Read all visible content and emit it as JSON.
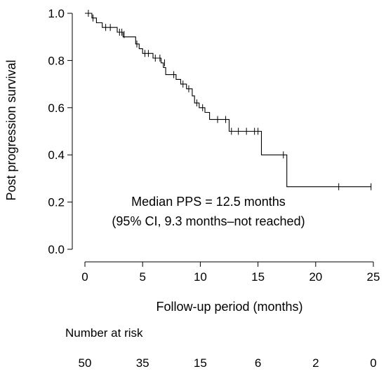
{
  "chart_data": {
    "type": "line",
    "subtype": "kaplan-meier",
    "ylabel": "Post progression survival",
    "xlabel": "Follow-up period (months)",
    "xlim": [
      0,
      25
    ],
    "ylim": [
      0.0,
      1.0
    ],
    "xticks": [
      "0",
      "5",
      "10",
      "15",
      "20",
      "25"
    ],
    "yticks": [
      "0.0",
      "0.2",
      "0.4",
      "0.6",
      "0.8",
      "1.0"
    ],
    "annotation": [
      "Median PPS = 12.5 months",
      "(95% CI, 9.3 months–not reached)"
    ],
    "steps": [
      {
        "x": 0.0,
        "y": 1.0
      },
      {
        "x": 0.6,
        "y": 0.98
      },
      {
        "x": 1.0,
        "y": 0.96
      },
      {
        "x": 1.5,
        "y": 0.94
      },
      {
        "x": 2.8,
        "y": 0.92
      },
      {
        "x": 3.3,
        "y": 0.9
      },
      {
        "x": 4.4,
        "y": 0.87
      },
      {
        "x": 4.7,
        "y": 0.85
      },
      {
        "x": 5.0,
        "y": 0.83
      },
      {
        "x": 5.9,
        "y": 0.81
      },
      {
        "x": 6.6,
        "y": 0.79
      },
      {
        "x": 6.8,
        "y": 0.77
      },
      {
        "x": 7.0,
        "y": 0.74
      },
      {
        "x": 7.9,
        "y": 0.72
      },
      {
        "x": 8.3,
        "y": 0.7
      },
      {
        "x": 8.8,
        "y": 0.68
      },
      {
        "x": 9.3,
        "y": 0.65
      },
      {
        "x": 9.5,
        "y": 0.62
      },
      {
        "x": 9.9,
        "y": 0.6
      },
      {
        "x": 10.4,
        "y": 0.58
      },
      {
        "x": 10.8,
        "y": 0.55
      },
      {
        "x": 12.5,
        "y": 0.5
      },
      {
        "x": 15.3,
        "y": 0.4
      },
      {
        "x": 17.5,
        "y": 0.265
      }
    ],
    "end_x": 24.8,
    "censored": [
      {
        "x": 0.3,
        "y": 1.0
      },
      {
        "x": 0.7,
        "y": 0.98
      },
      {
        "x": 1.8,
        "y": 0.94
      },
      {
        "x": 2.2,
        "y": 0.94
      },
      {
        "x": 3.0,
        "y": 0.92
      },
      {
        "x": 3.2,
        "y": 0.92
      },
      {
        "x": 3.4,
        "y": 0.91
      },
      {
        "x": 4.5,
        "y": 0.87
      },
      {
        "x": 5.2,
        "y": 0.83
      },
      {
        "x": 5.5,
        "y": 0.83
      },
      {
        "x": 6.1,
        "y": 0.81
      },
      {
        "x": 6.5,
        "y": 0.81
      },
      {
        "x": 6.9,
        "y": 0.79
      },
      {
        "x": 7.7,
        "y": 0.74
      },
      {
        "x": 8.5,
        "y": 0.7
      },
      {
        "x": 9.0,
        "y": 0.68
      },
      {
        "x": 9.7,
        "y": 0.62
      },
      {
        "x": 10.2,
        "y": 0.6
      },
      {
        "x": 11.5,
        "y": 0.55
      },
      {
        "x": 12.2,
        "y": 0.55
      },
      {
        "x": 12.7,
        "y": 0.5
      },
      {
        "x": 13.3,
        "y": 0.5
      },
      {
        "x": 14.0,
        "y": 0.5
      },
      {
        "x": 14.7,
        "y": 0.5
      },
      {
        "x": 15.0,
        "y": 0.5
      },
      {
        "x": 17.2,
        "y": 0.4
      },
      {
        "x": 22.0,
        "y": 0.265
      },
      {
        "x": 24.8,
        "y": 0.265
      }
    ],
    "risk_table": {
      "title": "Number  at risk",
      "times": [
        0,
        5,
        10,
        15,
        20,
        25
      ],
      "values": [
        "50",
        "35",
        "15",
        "6",
        "2",
        "0"
      ]
    }
  }
}
